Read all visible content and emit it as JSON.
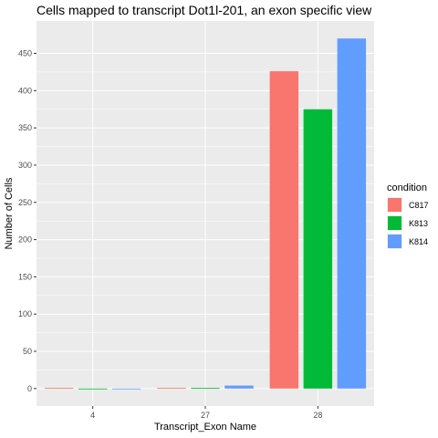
{
  "chart_data": {
    "type": "bar",
    "title": "Cells mapped to transcript Dot1l-201, an exon specific view",
    "xlabel": "Transcript_Exon Name",
    "ylabel": "Number of Cells",
    "categories": [
      "4",
      "27",
      "28"
    ],
    "series": [
      {
        "name": "C817",
        "color": "#F8766D",
        "values": [
          1,
          1,
          426
        ]
      },
      {
        "name": "K813",
        "color": "#00BA38",
        "values": [
          0,
          1,
          375
        ]
      },
      {
        "name": "K814",
        "color": "#619CFF",
        "values": [
          0,
          4,
          470
        ]
      }
    ],
    "yticks": [
      0,
      50,
      100,
      150,
      200,
      250,
      300,
      350,
      400,
      450
    ],
    "ylim": [
      -23.5,
      493.5
    ],
    "grid": true,
    "panel_background": "#EBEBEB",
    "legend": {
      "title": "condition",
      "position": "right"
    }
  }
}
